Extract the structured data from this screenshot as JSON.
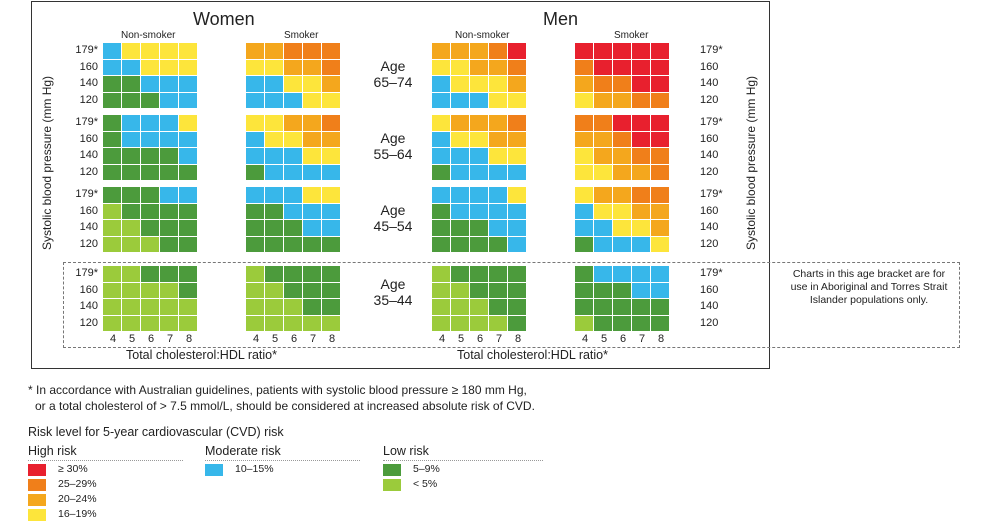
{
  "header": {
    "women": "Women",
    "men": "Men"
  },
  "groups": {
    "women_nonsmoker": "Non-smoker",
    "women_smoker": "Smoker",
    "men_nonsmoker": "Non-smoker",
    "men_smoker": "Smoker"
  },
  "age_bands": [
    {
      "label": "Age",
      "range": "65–74"
    },
    {
      "label": "Age",
      "range": "55–64"
    },
    {
      "label": "Age",
      "range": "45–54"
    },
    {
      "label": "Age",
      "range": "35–44"
    }
  ],
  "bp_ticks": [
    "179*",
    "160",
    "140",
    "120"
  ],
  "ratio_ticks": [
    "4",
    "5",
    "6",
    "7",
    "8"
  ],
  "y_axis_label": "Systolic blood pressure (mm Hg)",
  "x_axis_label": "Total cholesterol:HDL ratio*",
  "aboriginal_note": "Charts in this age bracket are for use in Aboriginal and Torres Strait Islander populations only.",
  "footnote": {
    "line1": "* In accordance with Australian guidelines, patients with systolic blood pressure ≥ 180 mm Hg,",
    "line2": "or a total cholesterol of > 7.5 mmol/L, should be considered at increased absolute risk of CVD."
  },
  "legend": {
    "title": "Risk level for 5-year cardiovascular (CVD) risk",
    "high": {
      "heading": "High risk",
      "items": [
        {
          "label": "≥ 30%",
          "color": "#e8202e"
        },
        {
          "label": "25–29%",
          "color": "#f07f1a"
        },
        {
          "label": "20–24%",
          "color": "#f4a71d"
        },
        {
          "label": "16–19%",
          "color": "#fde53b"
        }
      ]
    },
    "moderate": {
      "heading": "Moderate risk",
      "items": [
        {
          "label": "10–15%",
          "color": "#37b7ea"
        }
      ]
    },
    "low": {
      "heading": "Low risk",
      "items": [
        {
          "label": "5–9%",
          "color": "#4c9b3c"
        },
        {
          "label": "< 5%",
          "color": "#9bcb3b"
        }
      ]
    }
  },
  "colors": {
    "R": "#e8202e",
    "O": "#f07f1a",
    "A": "#f4a71d",
    "Y": "#fde53b",
    "B": "#37b7ea",
    "G": "#4c9b3c",
    "L": "#9bcb3b"
  },
  "risk_grids": {
    "women_nonsmoker": [
      [
        "BYYYY",
        "BBYYY",
        "GGBBB",
        "GGGBB"
      ],
      [
        "GBBBY",
        "GBBBB",
        "GGGGB",
        "GGGGG"
      ],
      [
        "GGGBB",
        "LGGGG",
        "LLGGG",
        "LLLGG"
      ],
      [
        "LLGGG",
        "LLLLG",
        "LLLLL",
        "LLLLL"
      ]
    ],
    "women_smoker": [
      [
        "AAOOO",
        "YYAAO",
        "BBYYA",
        "BBBYY"
      ],
      [
        "YYAAO",
        "BYYAA",
        "BBBYY",
        "GBBBB"
      ],
      [
        "BBBYY",
        "GGBBB",
        "GGGBB",
        "GGGGG"
      ],
      [
        "LGGGG",
        "LLGGG",
        "LLLGG",
        "LLLLL"
      ]
    ],
    "men_nonsmoker": [
      [
        "AAAOR",
        "YYAAO",
        "BYYYA",
        "BBBYY"
      ],
      [
        "YAAAO",
        "BYYAA",
        "BBBYY",
        "GBBBB"
      ],
      [
        "BBBBY",
        "GBBBB",
        "GGGBB",
        "GGGGB"
      ],
      [
        "LGGGG",
        "LLGGG",
        "LLLGG",
        "LLLLG"
      ]
    ],
    "men_smoker": [
      [
        "RRRRR",
        "ORRRR",
        "AOORR",
        "YAAOO"
      ],
      [
        "OORRR",
        "AAORR",
        "YAAOO",
        "YYAAO"
      ],
      [
        "YAAOO",
        "BYYAA",
        "BBYYA",
        "GBBBY"
      ],
      [
        "GBBBB",
        "GGGBB",
        "GGGGG",
        "LGGGG"
      ]
    ]
  }
}
